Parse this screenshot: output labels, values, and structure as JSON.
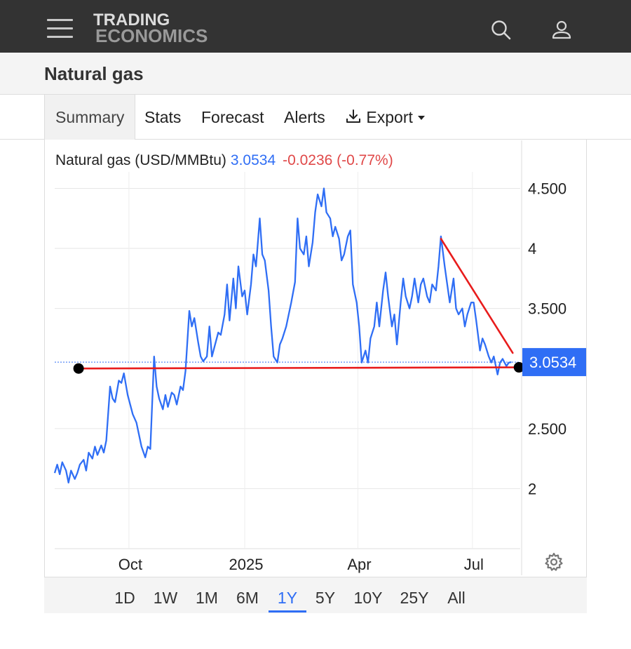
{
  "header": {
    "logo_line1": "TRADING",
    "logo_line2": "ECONOMICS"
  },
  "page": {
    "title": "Natural gas"
  },
  "tabs": [
    {
      "label": "Summary",
      "active": true
    },
    {
      "label": "Stats"
    },
    {
      "label": "Forecast"
    },
    {
      "label": "Alerts"
    },
    {
      "label": "Export"
    }
  ],
  "quote": {
    "name": "Natural gas (USD/MMBtu)",
    "price": "3.0534",
    "change": "-0.0236 (-0.77%)",
    "last_label": "3.0534"
  },
  "ranges": [
    {
      "label": "1D"
    },
    {
      "label": "1W"
    },
    {
      "label": "1M"
    },
    {
      "label": "6M"
    },
    {
      "label": "1Y",
      "active": true
    },
    {
      "label": "5Y"
    },
    {
      "label": "10Y"
    },
    {
      "label": "25Y"
    },
    {
      "label": "All"
    }
  ],
  "colors": {
    "series": "#2f6ef5",
    "trendline": "#e81c1c",
    "negative": "#e04848",
    "topbar": "#333333"
  },
  "icons": {
    "menu": "hamburger-icon",
    "search": "search-icon",
    "user": "user-icon",
    "export": "download-icon",
    "settings": "gear-icon"
  },
  "chart_data": {
    "type": "line",
    "ylim": [
      1.5,
      4.9
    ],
    "y_ticks": [
      2,
      2.5,
      3.5,
      4,
      4.5
    ],
    "y_tick_labels": [
      "2",
      "2.500",
      "3.500",
      "4",
      "4.500"
    ],
    "x_ticks": [
      {
        "label": "Oct",
        "date": "2024-10-01"
      },
      {
        "label": "2025",
        "date": "2025-01-01"
      },
      {
        "label": "Apr",
        "date": "2025-04-01"
      },
      {
        "label": "Jul",
        "date": "2025-07-01"
      }
    ],
    "xlim": [
      "2024-08-03",
      "2025-08-08"
    ],
    "grid": true,
    "last_value": 3.0534,
    "series": [
      {
        "points": [
          [
            "2024-08-03",
            2.13
          ],
          [
            "2024-08-05",
            2.2
          ],
          [
            "2024-08-07",
            2.12
          ],
          [
            "2024-08-09",
            2.22
          ],
          [
            "2024-08-12",
            2.15
          ],
          [
            "2024-08-14",
            2.05
          ],
          [
            "2024-08-16",
            2.15
          ],
          [
            "2024-08-19",
            2.08
          ],
          [
            "2024-08-21",
            2.13
          ],
          [
            "2024-08-23",
            2.2
          ],
          [
            "2024-08-26",
            2.24
          ],
          [
            "2024-08-28",
            2.15
          ],
          [
            "2024-08-30",
            2.3
          ],
          [
            "2024-09-02",
            2.25
          ],
          [
            "2024-09-04",
            2.35
          ],
          [
            "2024-09-06",
            2.28
          ],
          [
            "2024-09-09",
            2.36
          ],
          [
            "2024-09-11",
            2.3
          ],
          [
            "2024-09-13",
            2.4
          ],
          [
            "2024-09-16",
            2.85
          ],
          [
            "2024-09-18",
            2.75
          ],
          [
            "2024-09-20",
            2.72
          ],
          [
            "2024-09-23",
            2.9
          ],
          [
            "2024-09-25",
            2.88
          ],
          [
            "2024-09-27",
            2.96
          ],
          [
            "2024-09-30",
            2.78
          ],
          [
            "2024-10-02",
            2.7
          ],
          [
            "2024-10-04",
            2.62
          ],
          [
            "2024-10-07",
            2.55
          ],
          [
            "2024-10-09",
            2.45
          ],
          [
            "2024-10-11",
            2.35
          ],
          [
            "2024-10-14",
            2.26
          ],
          [
            "2024-10-16",
            2.35
          ],
          [
            "2024-10-18",
            2.33
          ],
          [
            "2024-10-21",
            3.1
          ],
          [
            "2024-10-23",
            2.85
          ],
          [
            "2024-10-25",
            2.75
          ],
          [
            "2024-10-28",
            2.66
          ],
          [
            "2024-10-30",
            2.78
          ],
          [
            "2024-11-01",
            2.68
          ],
          [
            "2024-11-04",
            2.8
          ],
          [
            "2024-11-06",
            2.78
          ],
          [
            "2024-11-08",
            2.7
          ],
          [
            "2024-11-11",
            2.85
          ],
          [
            "2024-11-13",
            2.82
          ],
          [
            "2024-11-15",
            2.98
          ],
          [
            "2024-11-18",
            3.48
          ],
          [
            "2024-11-20",
            3.35
          ],
          [
            "2024-11-22",
            3.42
          ],
          [
            "2024-11-25",
            3.22
          ],
          [
            "2024-11-27",
            3.1
          ],
          [
            "2024-11-29",
            3.06
          ],
          [
            "2024-12-02",
            3.1
          ],
          [
            "2024-12-04",
            3.35
          ],
          [
            "2024-12-06",
            3.1
          ],
          [
            "2024-12-09",
            3.22
          ],
          [
            "2024-12-11",
            3.3
          ],
          [
            "2024-12-13",
            3.28
          ],
          [
            "2024-12-16",
            3.45
          ],
          [
            "2024-12-18",
            3.7
          ],
          [
            "2024-12-20",
            3.4
          ],
          [
            "2024-12-23",
            3.75
          ],
          [
            "2024-12-25",
            3.5
          ],
          [
            "2024-12-27",
            3.85
          ],
          [
            "2024-12-30",
            3.6
          ],
          [
            "2025-01-01",
            3.65
          ],
          [
            "2025-01-03",
            3.45
          ],
          [
            "2025-01-06",
            3.7
          ],
          [
            "2025-01-08",
            3.95
          ],
          [
            "2025-01-10",
            3.85
          ],
          [
            "2025-01-13",
            4.25
          ],
          [
            "2025-01-15",
            3.95
          ],
          [
            "2025-01-17",
            3.9
          ],
          [
            "2025-01-20",
            3.65
          ],
          [
            "2025-01-22",
            3.35
          ],
          [
            "2025-01-24",
            3.1
          ],
          [
            "2025-01-27",
            3.05
          ],
          [
            "2025-01-29",
            3.2
          ],
          [
            "2025-01-31",
            3.25
          ],
          [
            "2025-02-03",
            3.35
          ],
          [
            "2025-02-05",
            3.45
          ],
          [
            "2025-02-07",
            3.55
          ],
          [
            "2025-02-10",
            3.72
          ],
          [
            "2025-02-12",
            4.25
          ],
          [
            "2025-02-14",
            4.0
          ],
          [
            "2025-02-17",
            3.95
          ],
          [
            "2025-02-19",
            4.1
          ],
          [
            "2025-02-21",
            3.85
          ],
          [
            "2025-02-24",
            4.05
          ],
          [
            "2025-02-26",
            4.3
          ],
          [
            "2025-02-28",
            4.45
          ],
          [
            "2025-03-03",
            4.35
          ],
          [
            "2025-03-05",
            4.5
          ],
          [
            "2025-03-07",
            4.3
          ],
          [
            "2025-03-10",
            4.25
          ],
          [
            "2025-03-12",
            4.1
          ],
          [
            "2025-03-14",
            4.18
          ],
          [
            "2025-03-17",
            4.08
          ],
          [
            "2025-03-19",
            3.9
          ],
          [
            "2025-03-21",
            3.95
          ],
          [
            "2025-03-24",
            4.1
          ],
          [
            "2025-03-26",
            4.15
          ],
          [
            "2025-03-28",
            3.7
          ],
          [
            "2025-03-31",
            3.55
          ],
          [
            "2025-04-02",
            3.35
          ],
          [
            "2025-04-04",
            3.05
          ],
          [
            "2025-04-07",
            3.15
          ],
          [
            "2025-04-09",
            3.05
          ],
          [
            "2025-04-11",
            3.25
          ],
          [
            "2025-04-14",
            3.35
          ],
          [
            "2025-04-16",
            3.55
          ],
          [
            "2025-04-18",
            3.35
          ],
          [
            "2025-04-21",
            3.65
          ],
          [
            "2025-04-23",
            3.8
          ],
          [
            "2025-04-25",
            3.6
          ],
          [
            "2025-04-28",
            3.35
          ],
          [
            "2025-04-30",
            3.45
          ],
          [
            "2025-05-02",
            3.2
          ],
          [
            "2025-05-05",
            3.55
          ],
          [
            "2025-05-07",
            3.75
          ],
          [
            "2025-05-09",
            3.6
          ],
          [
            "2025-05-12",
            3.5
          ],
          [
            "2025-05-14",
            3.6
          ],
          [
            "2025-05-16",
            3.75
          ],
          [
            "2025-05-19",
            3.55
          ],
          [
            "2025-05-21",
            3.7
          ],
          [
            "2025-05-23",
            3.75
          ],
          [
            "2025-05-26",
            3.6
          ],
          [
            "2025-05-28",
            3.55
          ],
          [
            "2025-05-30",
            3.7
          ],
          [
            "2025-06-02",
            3.65
          ],
          [
            "2025-06-04",
            3.85
          ],
          [
            "2025-06-06",
            4.1
          ],
          [
            "2025-06-09",
            3.85
          ],
          [
            "2025-06-11",
            3.7
          ],
          [
            "2025-06-13",
            3.55
          ],
          [
            "2025-06-16",
            3.75
          ],
          [
            "2025-06-18",
            3.5
          ],
          [
            "2025-06-20",
            3.45
          ],
          [
            "2025-06-23",
            3.5
          ],
          [
            "2025-06-25",
            3.35
          ],
          [
            "2025-06-27",
            3.45
          ],
          [
            "2025-06-30",
            3.55
          ],
          [
            "2025-07-02",
            3.55
          ],
          [
            "2025-07-04",
            3.4
          ],
          [
            "2025-07-07",
            3.15
          ],
          [
            "2025-07-09",
            3.25
          ],
          [
            "2025-07-11",
            3.2
          ],
          [
            "2025-07-14",
            3.1
          ],
          [
            "2025-07-16",
            3.05
          ],
          [
            "2025-07-18",
            3.1
          ],
          [
            "2025-07-21",
            2.95
          ],
          [
            "2025-07-23",
            3.05
          ],
          [
            "2025-07-25",
            3.08
          ],
          [
            "2025-07-28",
            3.02
          ],
          [
            "2025-07-30",
            3.05
          ],
          [
            "2025-08-01",
            3.0534
          ]
        ]
      }
    ],
    "trendlines": [
      {
        "from": [
          "2024-08-22",
          3.0
        ],
        "to": [
          "2025-08-07",
          3.01
        ],
        "endpoint_markers": true
      },
      {
        "from": [
          "2025-06-06",
          4.08
        ],
        "to": [
          "2025-08-02",
          3.13
        ],
        "endpoint_markers": false
      }
    ]
  }
}
